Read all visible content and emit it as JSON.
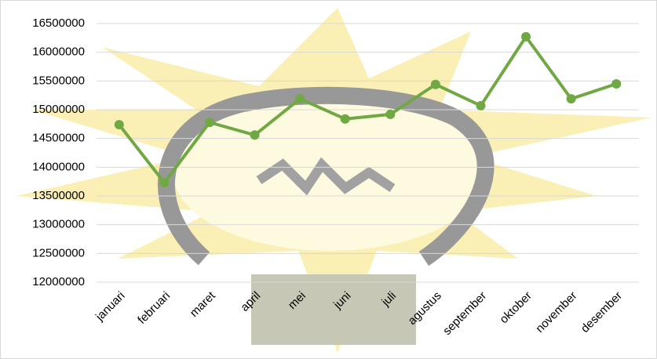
{
  "chart_data": {
    "type": "line",
    "categories": [
      "januari",
      "februari",
      "maret",
      "april",
      "mei",
      "juni",
      "juli",
      "agustus",
      "september",
      "oktober",
      "november",
      "desember"
    ],
    "series": [
      {
        "color": "#70a844",
        "values": [
          14740000,
          13730000,
          14780000,
          14560000,
          15190000,
          14840000,
          14920000,
          15440000,
          15070000,
          16270000,
          15190000,
          15450000
        ]
      }
    ],
    "ylim": [
      12000000,
      16500000
    ],
    "yticks": [
      12000000,
      12500000,
      13000000,
      13500000,
      14000000,
      14500000,
      15000000,
      15500000,
      16000000,
      16500000
    ],
    "grid": true
  }
}
